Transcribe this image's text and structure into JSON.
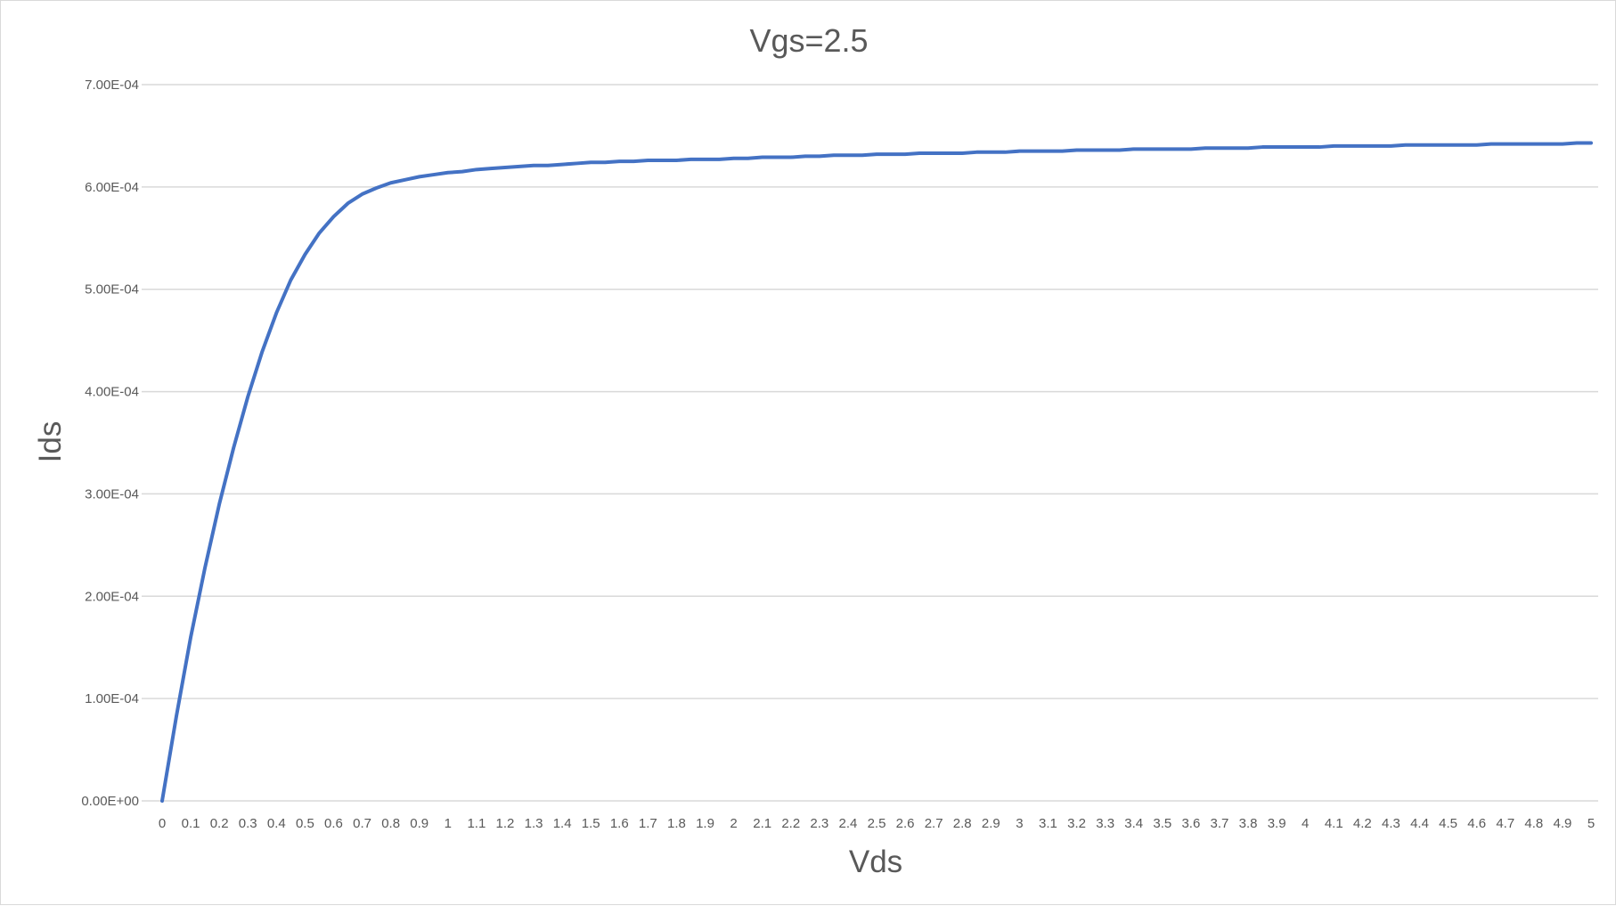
{
  "chart_data": {
    "type": "line",
    "title": "Vgs=2.5",
    "xlabel": "Vds",
    "ylabel": "Ids",
    "ylim": [
      0,
      0.0007
    ],
    "y_ticks": [
      {
        "value": 0,
        "label": "0.00E+00"
      },
      {
        "value": 0.0001,
        "label": "1.00E-04"
      },
      {
        "value": 0.0002,
        "label": "2.00E-04"
      },
      {
        "value": 0.0003,
        "label": "3.00E-04"
      },
      {
        "value": 0.0004,
        "label": "4.00E-04"
      },
      {
        "value": 0.0005,
        "label": "5.00E-04"
      },
      {
        "value": 0.0006,
        "label": "6.00E-04"
      },
      {
        "value": 0.0007,
        "label": "7.00E-04"
      }
    ],
    "categories": [
      "0",
      "0.1",
      "0.2",
      "0.3",
      "0.4",
      "0.5",
      "0.6",
      "0.7",
      "0.8",
      "0.9",
      "1",
      "1.1",
      "1.2",
      "1.3",
      "1.4",
      "1.5",
      "1.6",
      "1.7",
      "1.8",
      "1.9",
      "2",
      "2.1",
      "2.2",
      "2.3",
      "2.4",
      "2.5",
      "2.6",
      "2.7",
      "2.8",
      "2.9",
      "3",
      "3.1",
      "3.2",
      "3.3",
      "3.4",
      "3.5",
      "3.6",
      "3.7",
      "3.8",
      "3.9",
      "4",
      "4.1",
      "4.2",
      "4.3",
      "4.4",
      "4.5",
      "4.6",
      "4.7",
      "4.8",
      "4.9",
      "5"
    ],
    "grid": true,
    "legend": "none",
    "series": [
      {
        "color": "#4472c4",
        "x": [
          0,
          0.05,
          0.1,
          0.15,
          0.2,
          0.25,
          0.3,
          0.35,
          0.4,
          0.45,
          0.5,
          0.55,
          0.6,
          0.65,
          0.7,
          0.75,
          0.8,
          0.85,
          0.9,
          0.95,
          1,
          1.05,
          1.1,
          1.15,
          1.2,
          1.25,
          1.3,
          1.35,
          1.4,
          1.45,
          1.5,
          1.55,
          1.6,
          1.65,
          1.7,
          1.75,
          1.8,
          1.85,
          1.9,
          1.95,
          2,
          2.05,
          2.1,
          2.15,
          2.2,
          2.25,
          2.3,
          2.35,
          2.4,
          2.45,
          2.5,
          2.55,
          2.6,
          2.65,
          2.7,
          2.75,
          2.8,
          2.85,
          2.9,
          2.95,
          3,
          3.05,
          3.1,
          3.15,
          3.2,
          3.25,
          3.3,
          3.35,
          3.4,
          3.45,
          3.5,
          3.55,
          3.6,
          3.65,
          3.7,
          3.75,
          3.8,
          3.85,
          3.9,
          3.95,
          4,
          4.05,
          4.1,
          4.15,
          4.2,
          4.25,
          4.3,
          4.35,
          4.4,
          4.45,
          4.5,
          4.55,
          4.6,
          4.65,
          4.7,
          4.75,
          4.8,
          4.85,
          4.9,
          4.95,
          5
        ],
        "values": [
          0,
          8.3e-05,
          0.00016,
          0.000228,
          0.00029,
          0.000345,
          0.000395,
          0.000439,
          0.000477,
          0.000509,
          0.000534,
          0.000555,
          0.000571,
          0.000584,
          0.000593,
          0.000599,
          0.000604,
          0.000607,
          0.00061,
          0.000612,
          0.000614,
          0.000615,
          0.000617,
          0.000618,
          0.000619,
          0.00062,
          0.000621,
          0.000621,
          0.000622,
          0.000623,
          0.000624,
          0.000624,
          0.000625,
          0.000625,
          0.000626,
          0.000626,
          0.000626,
          0.000627,
          0.000627,
          0.000627,
          0.000628,
          0.000628,
          0.000629,
          0.000629,
          0.000629,
          0.00063,
          0.00063,
          0.000631,
          0.000631,
          0.000631,
          0.000632,
          0.000632,
          0.000632,
          0.000633,
          0.000633,
          0.000633,
          0.000633,
          0.000634,
          0.000634,
          0.000634,
          0.000635,
          0.000635,
          0.000635,
          0.000635,
          0.000636,
          0.000636,
          0.000636,
          0.000636,
          0.000637,
          0.000637,
          0.000637,
          0.000637,
          0.000637,
          0.000638,
          0.000638,
          0.000638,
          0.000638,
          0.000639,
          0.000639,
          0.000639,
          0.000639,
          0.000639,
          0.00064,
          0.00064,
          0.00064,
          0.00064,
          0.00064,
          0.000641,
          0.000641,
          0.000641,
          0.000641,
          0.000641,
          0.000641,
          0.000642,
          0.000642,
          0.000642,
          0.000642,
          0.000642,
          0.000642,
          0.000643,
          0.000643
        ]
      }
    ]
  }
}
